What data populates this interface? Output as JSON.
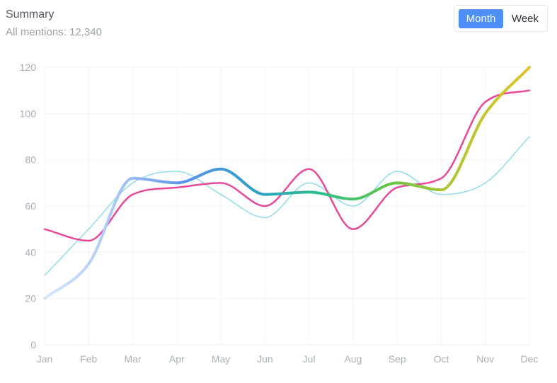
{
  "header": {
    "title": "Summary",
    "subtitle": "All mentions: 12,340"
  },
  "toggle": {
    "active_label": "Month",
    "inactive_label": "Week"
  },
  "colors": {
    "accent": "#4d8ef7",
    "series_light": "#8fdde8",
    "series_pink": "#e8489a",
    "gradient_stops": [
      "#d6e6fb",
      "#a9c8f6",
      "#5b94ec",
      "#2f9ec9",
      "#2dbf8a",
      "#6ac445",
      "#b6c631",
      "#dcc326"
    ]
  },
  "chart_data": {
    "type": "line",
    "categories": [
      "Jan",
      "Feb",
      "Mar",
      "Apr",
      "May",
      "Jun",
      "Jul",
      "Aug",
      "Sep",
      "Oct",
      "Nov",
      "Dec"
    ],
    "ylim": [
      0,
      120
    ],
    "yticks": [
      0,
      20,
      40,
      60,
      80,
      100,
      120
    ],
    "grid": true,
    "title": "",
    "xlabel": "",
    "ylabel": "",
    "series": [
      {
        "values": [
          30,
          50,
          70,
          75,
          65,
          55,
          70,
          60,
          75,
          65,
          70,
          90
        ],
        "style": "thin",
        "color": "#8fdde8"
      },
      {
        "values": [
          50,
          45,
          65,
          68,
          70,
          60,
          76,
          50,
          68,
          72,
          105,
          110
        ],
        "style": "medium",
        "color": "#e8489a"
      },
      {
        "values": [
          20,
          35,
          72,
          70,
          76,
          65,
          66,
          63,
          70,
          67,
          100,
          120
        ],
        "style": "gradient"
      }
    ]
  }
}
